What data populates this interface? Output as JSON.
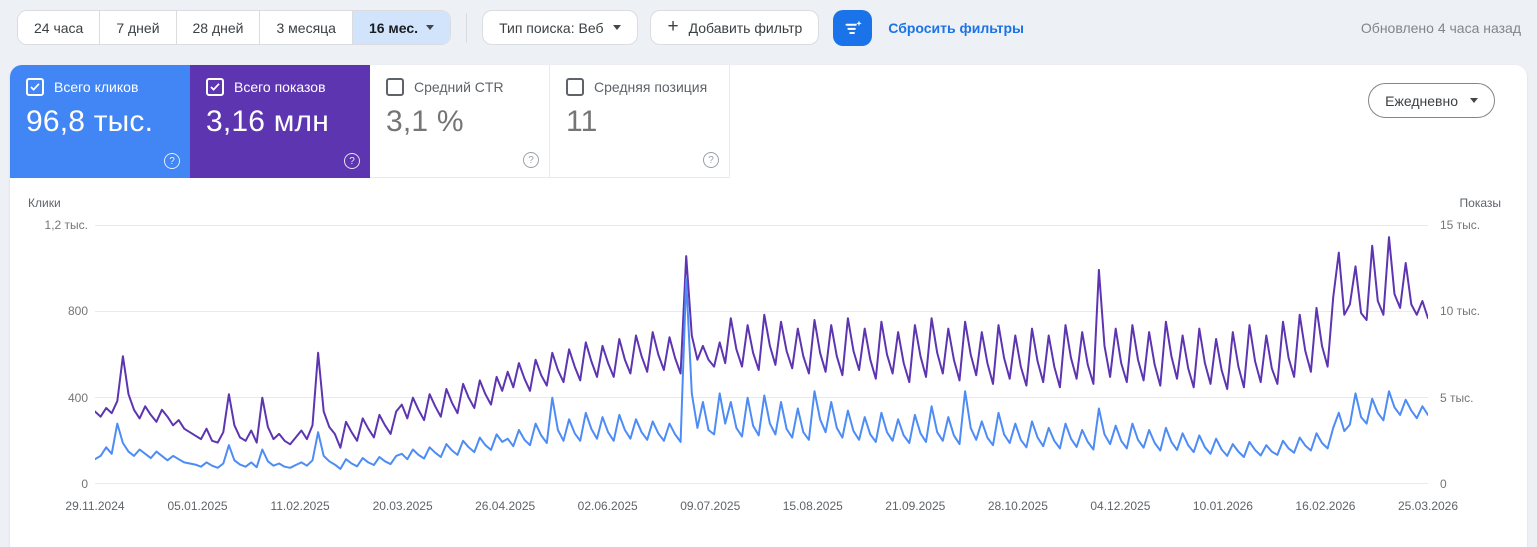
{
  "toolbar": {
    "date_ranges": [
      {
        "label": "24 часа",
        "selected": false
      },
      {
        "label": "7 дней",
        "selected": false
      },
      {
        "label": "28 дней",
        "selected": false
      },
      {
        "label": "3 месяца",
        "selected": false
      },
      {
        "label": "16 мес.",
        "selected": true
      }
    ],
    "search_type_label": "Тип поиска: Веб",
    "add_filter_label": "Добавить фильтр",
    "reset_filters_label": "Сбросить фильтры",
    "updated_text": "Обновлено 4 часа назад"
  },
  "icons": {
    "plus": "+",
    "help": "?"
  },
  "metrics": {
    "cards": [
      {
        "key": "clicks",
        "label": "Всего кликов",
        "value": "96,8 тыс.",
        "checked": true,
        "colored": true,
        "color": "#4285f4"
      },
      {
        "key": "impressions",
        "label": "Всего показов",
        "value": "3,16 млн",
        "checked": true,
        "colored": true,
        "color": "#5e35b1"
      },
      {
        "key": "ctr",
        "label": "Средний CTR",
        "value": "3,1 %",
        "checked": false,
        "colored": false,
        "color": "#ffffff"
      },
      {
        "key": "position",
        "label": "Средняя позиция",
        "value": "11",
        "checked": false,
        "colored": false,
        "color": "#ffffff"
      }
    ],
    "frequency_label": "Ежедневно"
  },
  "chart_data": {
    "type": "line",
    "grid": true,
    "legend_position": "none",
    "left_axis": {
      "title": "Клики",
      "range": [
        0,
        1200
      ],
      "ticks": [
        "0",
        "400",
        "800",
        "1,2 тыс."
      ]
    },
    "right_axis": {
      "title": "Показы",
      "range": [
        0,
        15000
      ],
      "ticks": [
        "0",
        "5 тыс.",
        "10 тыс.",
        "15 тыс."
      ]
    },
    "x_ticks": [
      "29.11.2024",
      "05.01.2025",
      "11.02.2025",
      "20.03.2025",
      "26.04.2025",
      "02.06.2025",
      "09.07.2025",
      "15.08.2025",
      "21.09.2025",
      "28.10.2025",
      "04.12.2025",
      "10.01.2026",
      "16.02.2026",
      "25.03.2026"
    ],
    "series": [
      {
        "name": "Клики",
        "axis": "left",
        "color": "#4e8cf5",
        "values": [
          115,
          130,
          170,
          140,
          280,
          190,
          150,
          130,
          160,
          140,
          120,
          150,
          130,
          110,
          130,
          115,
          100,
          95,
          90,
          80,
          100,
          85,
          75,
          95,
          180,
          110,
          90,
          80,
          100,
          78,
          160,
          105,
          85,
          95,
          80,
          75,
          88,
          100,
          85,
          110,
          240,
          130,
          105,
          90,
          70,
          115,
          95,
          82,
          120,
          100,
          88,
          125,
          105,
          92,
          130,
          140,
          115,
          160,
          135,
          118,
          170,
          145,
          125,
          185,
          155,
          135,
          200,
          170,
          148,
          215,
          180,
          158,
          230,
          195,
          210,
          175,
          250,
          205,
          180,
          280,
          225,
          190,
          400,
          250,
          200,
          300,
          235,
          200,
          330,
          255,
          210,
          310,
          240,
          200,
          320,
          250,
          210,
          300,
          240,
          205,
          290,
          235,
          200,
          280,
          230,
          195,
          950,
          420,
          260,
          380,
          250,
          230,
          420,
          280,
          380,
          260,
          220,
          400,
          270,
          225,
          410,
          280,
          230,
          380,
          255,
          215,
          350,
          240,
          205,
          430,
          300,
          240,
          380,
          260,
          215,
          340,
          245,
          205,
          310,
          230,
          195,
          330,
          240,
          200,
          300,
          225,
          190,
          320,
          235,
          195,
          360,
          240,
          200,
          310,
          225,
          185,
          430,
          260,
          205,
          290,
          215,
          180,
          330,
          230,
          190,
          280,
          205,
          170,
          290,
          215,
          175,
          260,
          200,
          165,
          280,
          210,
          172,
          250,
          195,
          160,
          350,
          230,
          185,
          270,
          200,
          165,
          280,
          205,
          168,
          250,
          190,
          155,
          260,
          195,
          158,
          235,
          180,
          148,
          225,
          170,
          140,
          210,
          160,
          130,
          185,
          150,
          125,
          195,
          158,
          132,
          180,
          150,
          135,
          200,
          165,
          145,
          215,
          178,
          155,
          235,
          190,
          165,
          260,
          330,
          245,
          275,
          420,
          310,
          280,
          395,
          330,
          295,
          430,
          355,
          320,
          390,
          340,
          305,
          360,
          320
        ]
      },
      {
        "name": "Показы",
        "axis": "right",
        "color": "#5e35b1",
        "values": [
          4200,
          3900,
          4400,
          4100,
          4800,
          7400,
          5200,
          4300,
          3800,
          4500,
          4000,
          3600,
          4300,
          3900,
          3400,
          3700,
          3200,
          3000,
          2800,
          2600,
          3200,
          2500,
          2400,
          3000,
          5200,
          3400,
          2700,
          2500,
          3100,
          2400,
          5000,
          3300,
          2600,
          2900,
          2500,
          2300,
          2700,
          3100,
          2600,
          3400,
          7600,
          4200,
          3300,
          2900,
          2100,
          3600,
          3000,
          2500,
          3800,
          3200,
          2700,
          4000,
          3400,
          2900,
          4200,
          4600,
          3800,
          5000,
          4300,
          3700,
          5200,
          4500,
          3900,
          5500,
          4700,
          4100,
          5800,
          5000,
          4400,
          6000,
          5200,
          4600,
          6200,
          5400,
          6500,
          5600,
          7000,
          6100,
          5400,
          7200,
          6300,
          5700,
          7600,
          6600,
          5900,
          7800,
          6800,
          6000,
          8200,
          7100,
          6200,
          8000,
          7000,
          6200,
          8400,
          7200,
          6400,
          8600,
          7400,
          6500,
          8800,
          7500,
          6600,
          8500,
          7300,
          6400,
          13200,
          8600,
          7200,
          8000,
          7200,
          6800,
          8200,
          7000,
          9600,
          7800,
          6800,
          9200,
          7600,
          6600,
          9800,
          8000,
          6900,
          9400,
          7700,
          6700,
          9000,
          7400,
          6400,
          9500,
          7600,
          6500,
          9200,
          7400,
          6300,
          9600,
          7700,
          6600,
          9000,
          7200,
          6100,
          9400,
          7500,
          6400,
          8800,
          7000,
          5900,
          9200,
          7400,
          6200,
          9600,
          7600,
          6400,
          9000,
          7200,
          6000,
          9400,
          7500,
          6300,
          8800,
          7000,
          5800,
          9200,
          7300,
          6100,
          8600,
          6800,
          5700,
          9000,
          7100,
          5900,
          8600,
          6800,
          5600,
          9200,
          7300,
          6100,
          8800,
          6900,
          5800,
          12400,
          8000,
          6200,
          9000,
          7000,
          5900,
          9200,
          7200,
          6000,
          8800,
          6900,
          5700,
          9400,
          7400,
          6100,
          8600,
          6700,
          5600,
          9000,
          7000,
          5800,
          8400,
          6600,
          5500,
          8800,
          6800,
          5600,
          9200,
          7100,
          5900,
          8600,
          6700,
          5800,
          9400,
          7300,
          6200,
          9800,
          7700,
          6500,
          10200,
          8000,
          6800,
          10800,
          13400,
          9800,
          10400,
          12600,
          9900,
          9500,
          13800,
          10600,
          9800,
          14300,
          11000,
          10200,
          12800,
          10400,
          9800,
          10600,
          9600
        ]
      }
    ]
  }
}
